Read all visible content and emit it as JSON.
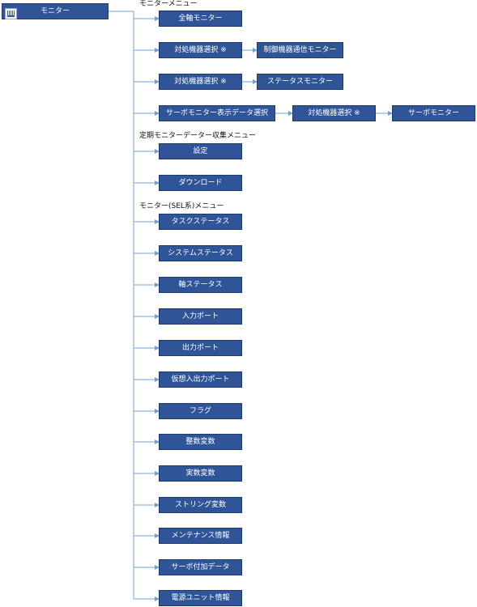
{
  "root": {
    "label": "モニター",
    "icon": "panel-icon"
  },
  "headings": {
    "monitor_menu": "モニターメニュー",
    "periodic_menu": "定期モニターデーター収集メニュー",
    "sel_menu": "モニター(SEL系)メニュー"
  },
  "monitor_menu": {
    "all_axis": "全軸モニター",
    "row2": {
      "target": "対処機器選択 ※",
      "child": "制御機器通信モニター"
    },
    "row3": {
      "target": "対処機器選択 ※",
      "child": "ステータスモニター"
    },
    "row4": {
      "select": "サーボモニター表示データ選択",
      "target": "対処機器選択 ※",
      "child": "サーボモニター"
    }
  },
  "periodic_menu": {
    "settings": "設定",
    "download": "ダウンロード"
  },
  "sel_menu": {
    "items": [
      "タスクステータス",
      "システムステータス",
      "軸ステータス",
      "入力ポート",
      "出力ポート",
      "仮想入出力ポート",
      "フラグ",
      "整数変数",
      "実数変数",
      "ストリング変数",
      "メンテナンス情報",
      "サーボ付加データ",
      "電源ユニット情報"
    ]
  },
  "colors": {
    "node_fill": "#2f5497",
    "connector": "#6fa0d8"
  }
}
